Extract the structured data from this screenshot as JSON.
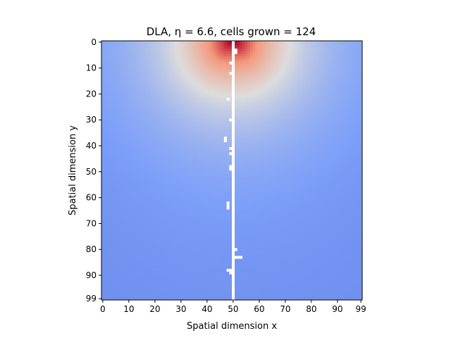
{
  "chart_data": {
    "type": "heatmap",
    "title": "DLA, η = 6.6, cells grown = 124",
    "xlabel": "Spatial dimension x",
    "ylabel": "Spatial dimension y",
    "xlim": [
      0,
      99
    ],
    "ylim": [
      99,
      0
    ],
    "grid_size": 100,
    "colormap": "coolwarm",
    "value_range": [
      0,
      1
    ],
    "source_row": 0,
    "source_col": 50,
    "cluster_color": "#ffffff",
    "xticks": [
      {
        "value": 0,
        "label": "0"
      },
      {
        "value": 10,
        "label": "10"
      },
      {
        "value": 20,
        "label": "20"
      },
      {
        "value": 30,
        "label": "30"
      },
      {
        "value": 40,
        "label": "40"
      },
      {
        "value": 50,
        "label": "50"
      },
      {
        "value": 60,
        "label": "60"
      },
      {
        "value": 70,
        "label": "70"
      },
      {
        "value": 80,
        "label": "80"
      },
      {
        "value": 90,
        "label": "90"
      },
      {
        "value": 99,
        "label": "99"
      }
    ],
    "yticks": [
      {
        "value": 0,
        "label": "0"
      },
      {
        "value": 10,
        "label": "10"
      },
      {
        "value": 20,
        "label": "20"
      },
      {
        "value": 30,
        "label": "30"
      },
      {
        "value": 40,
        "label": "40"
      },
      {
        "value": 50,
        "label": "50"
      },
      {
        "value": 60,
        "label": "60"
      },
      {
        "value": 70,
        "label": "70"
      },
      {
        "value": 80,
        "label": "80"
      },
      {
        "value": 90,
        "label": "90"
      },
      {
        "value": 99,
        "label": "99"
      }
    ],
    "cluster_cells": [
      [
        0,
        50
      ],
      [
        1,
        50
      ],
      [
        2,
        50
      ],
      [
        3,
        50
      ],
      [
        4,
        50
      ],
      [
        5,
        50
      ],
      [
        6,
        50
      ],
      [
        7,
        50
      ],
      [
        8,
        50
      ],
      [
        9,
        50
      ],
      [
        10,
        50
      ],
      [
        11,
        50
      ],
      [
        12,
        50
      ],
      [
        13,
        50
      ],
      [
        14,
        50
      ],
      [
        15,
        50
      ],
      [
        16,
        50
      ],
      [
        17,
        50
      ],
      [
        18,
        50
      ],
      [
        19,
        50
      ],
      [
        20,
        50
      ],
      [
        21,
        50
      ],
      [
        22,
        50
      ],
      [
        23,
        50
      ],
      [
        24,
        50
      ],
      [
        25,
        50
      ],
      [
        26,
        50
      ],
      [
        27,
        50
      ],
      [
        28,
        50
      ],
      [
        29,
        50
      ],
      [
        30,
        50
      ],
      [
        31,
        50
      ],
      [
        32,
        50
      ],
      [
        33,
        50
      ],
      [
        34,
        50
      ],
      [
        35,
        50
      ],
      [
        36,
        50
      ],
      [
        37,
        50
      ],
      [
        38,
        50
      ],
      [
        39,
        50
      ],
      [
        40,
        50
      ],
      [
        41,
        50
      ],
      [
        42,
        50
      ],
      [
        43,
        50
      ],
      [
        44,
        50
      ],
      [
        45,
        50
      ],
      [
        46,
        50
      ],
      [
        47,
        50
      ],
      [
        48,
        50
      ],
      [
        49,
        50
      ],
      [
        50,
        50
      ],
      [
        51,
        50
      ],
      [
        52,
        50
      ],
      [
        53,
        50
      ],
      [
        54,
        50
      ],
      [
        55,
        50
      ],
      [
        56,
        50
      ],
      [
        57,
        50
      ],
      [
        58,
        50
      ],
      [
        59,
        50
      ],
      [
        60,
        50
      ],
      [
        61,
        50
      ],
      [
        62,
        50
      ],
      [
        63,
        50
      ],
      [
        64,
        50
      ],
      [
        65,
        50
      ],
      [
        66,
        50
      ],
      [
        67,
        50
      ],
      [
        68,
        50
      ],
      [
        69,
        50
      ],
      [
        70,
        50
      ],
      [
        71,
        50
      ],
      [
        72,
        50
      ],
      [
        73,
        50
      ],
      [
        74,
        50
      ],
      [
        75,
        50
      ],
      [
        76,
        50
      ],
      [
        77,
        50
      ],
      [
        78,
        50
      ],
      [
        79,
        50
      ],
      [
        80,
        50
      ],
      [
        81,
        50
      ],
      [
        82,
        50
      ],
      [
        83,
        50
      ],
      [
        84,
        50
      ],
      [
        85,
        50
      ],
      [
        86,
        50
      ],
      [
        87,
        50
      ],
      [
        88,
        50
      ],
      [
        89,
        50
      ],
      [
        90,
        50
      ],
      [
        91,
        50
      ],
      [
        92,
        50
      ],
      [
        93,
        50
      ],
      [
        94,
        50
      ],
      [
        95,
        50
      ],
      [
        96,
        50
      ],
      [
        97,
        50
      ],
      [
        98,
        50
      ],
      [
        99,
        50
      ],
      [
        3,
        51
      ],
      [
        4,
        51
      ],
      [
        8,
        49
      ],
      [
        12,
        49
      ],
      [
        22,
        48
      ],
      [
        30,
        49
      ],
      [
        37,
        47
      ],
      [
        38,
        47
      ],
      [
        41,
        49
      ],
      [
        43,
        49
      ],
      [
        48,
        49
      ],
      [
        49,
        49
      ],
      [
        62,
        48
      ],
      [
        63,
        48
      ],
      [
        64,
        48
      ],
      [
        76,
        50
      ],
      [
        80,
        51
      ],
      [
        82,
        50
      ],
      [
        83,
        51
      ],
      [
        83,
        52
      ],
      [
        83,
        53
      ],
      [
        88,
        48
      ],
      [
        88,
        49
      ],
      [
        89,
        49
      ]
    ]
  }
}
